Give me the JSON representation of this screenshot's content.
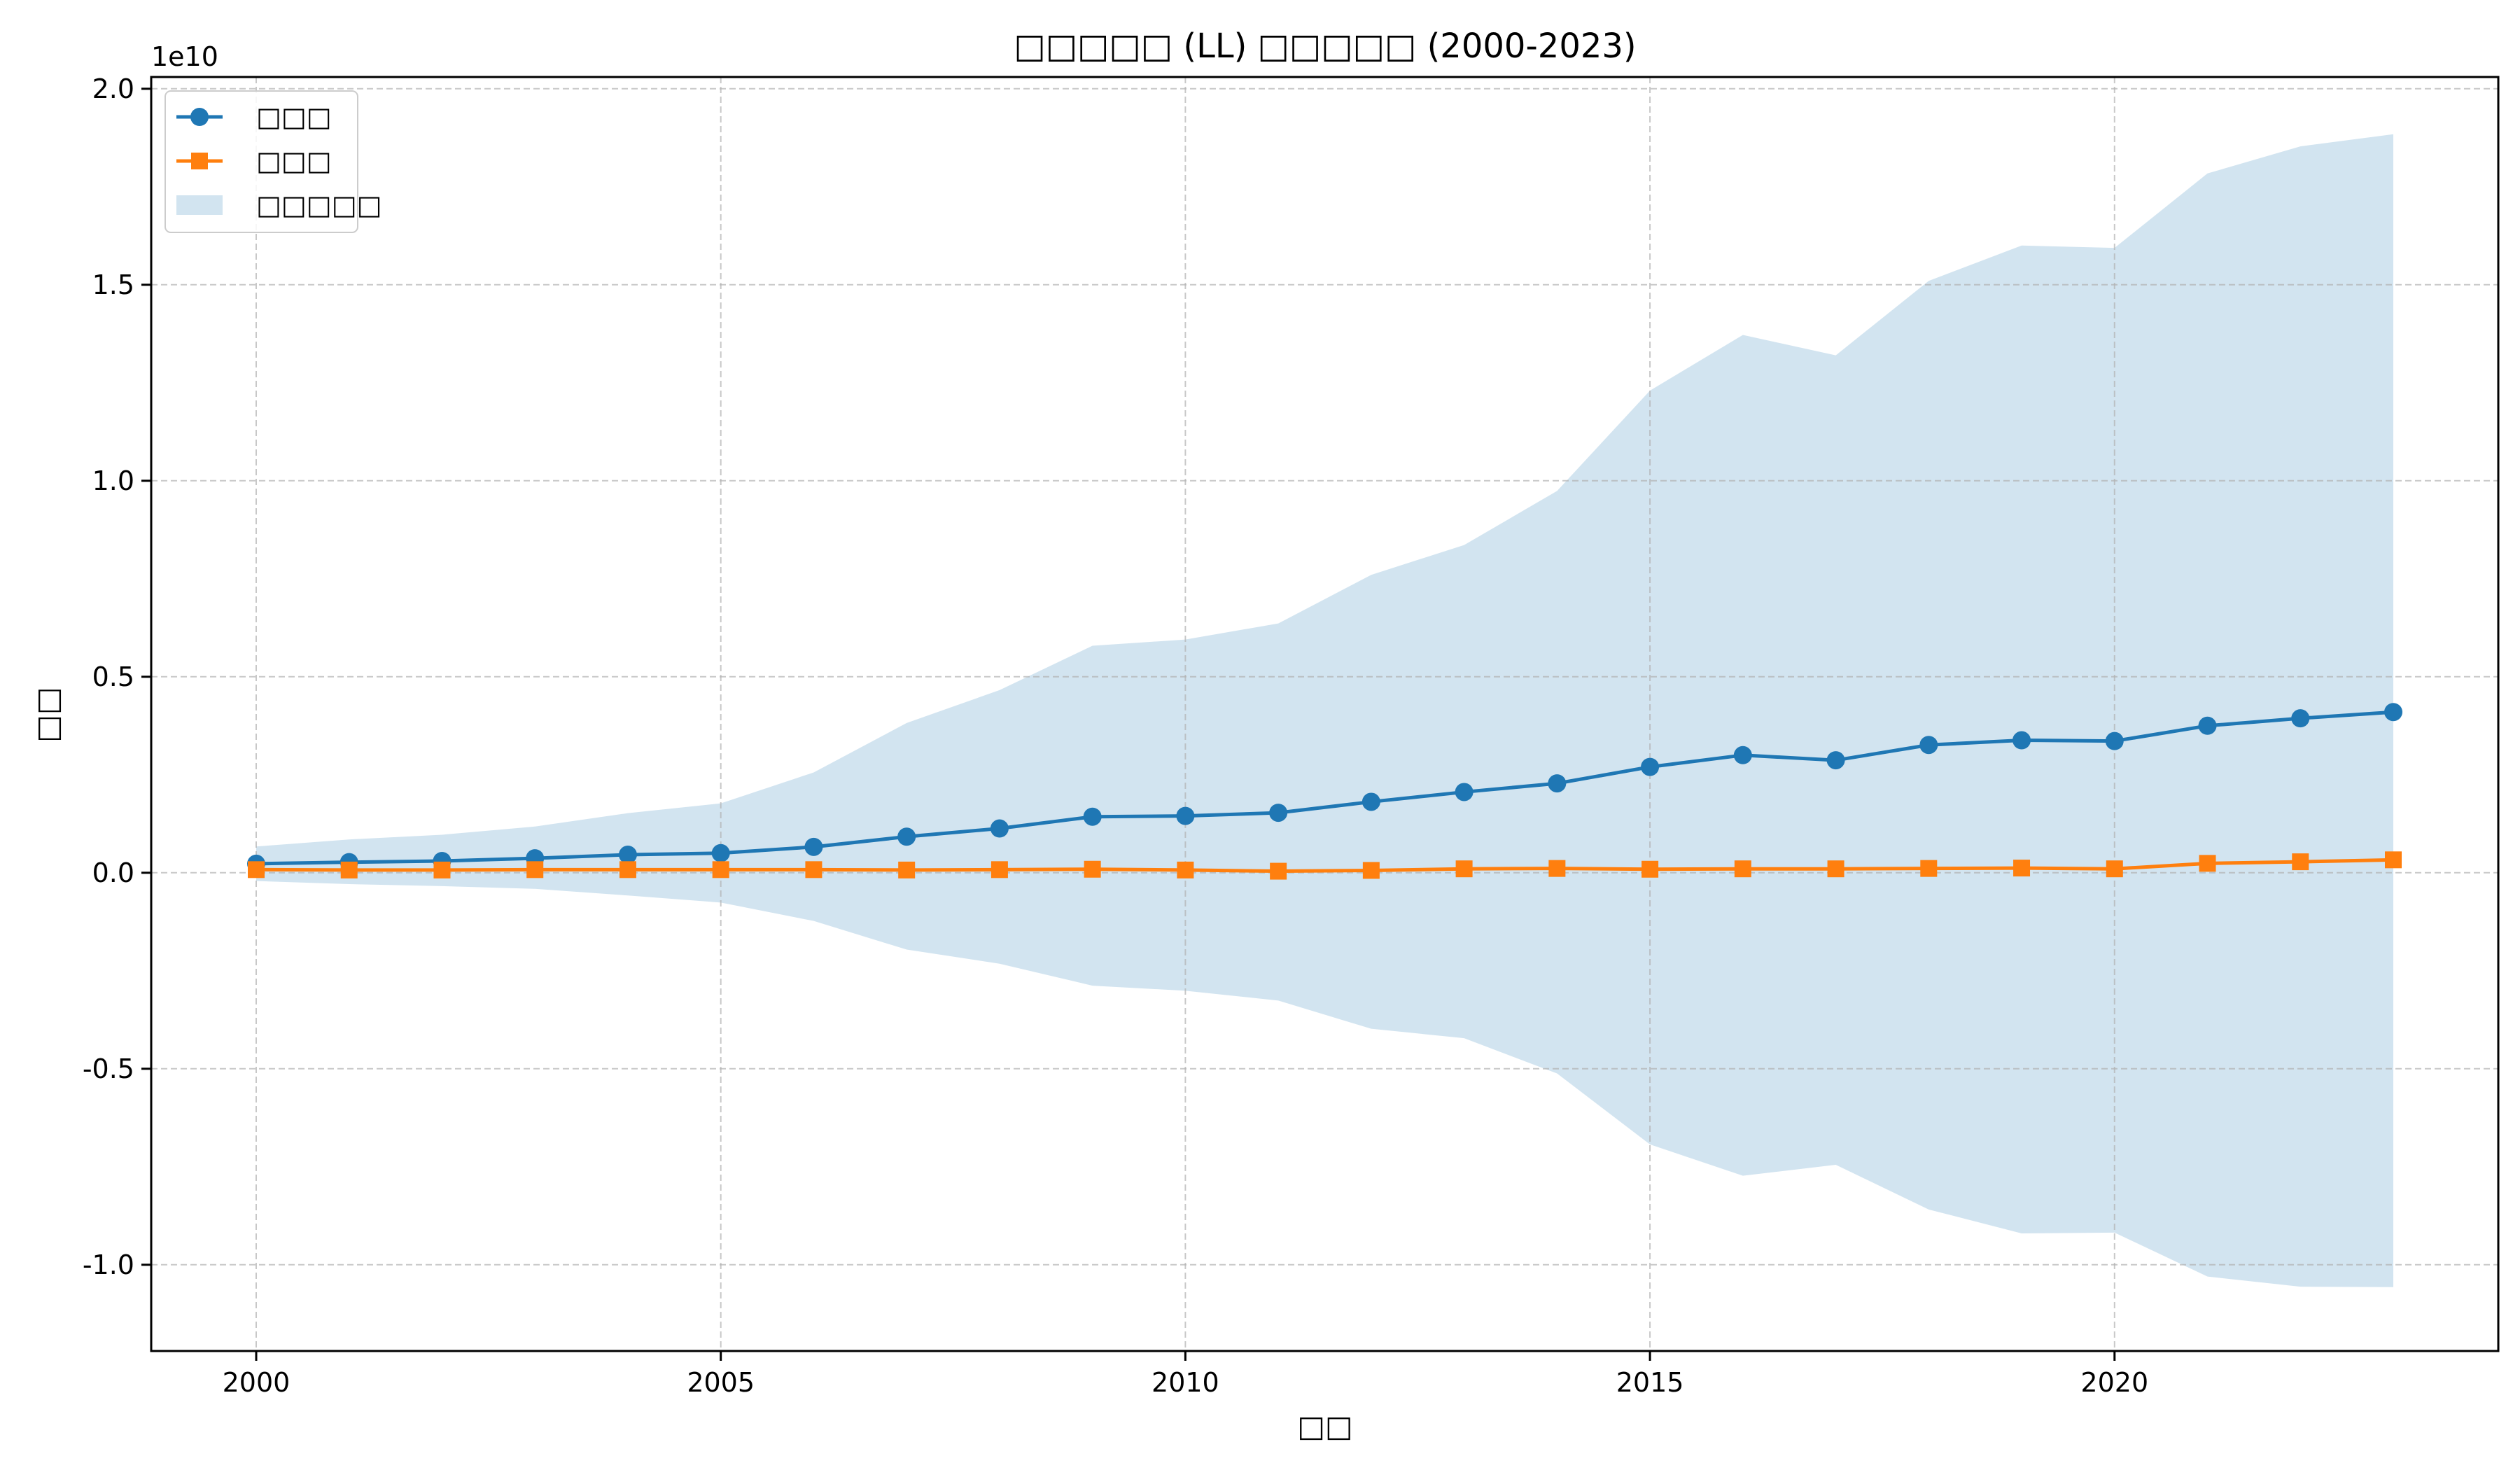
{
  "chart_data": {
    "type": "line",
    "title": "□□□□□ (LL) □□□□□ (2000-2023)",
    "xlabel": "□□",
    "ylabel": "□□",
    "y_offset_label": "1e10",
    "x": [
      2000,
      2001,
      2002,
      2003,
      2004,
      2005,
      2006,
      2007,
      2008,
      2009,
      2010,
      2011,
      2012,
      2013,
      2014,
      2015,
      2016,
      2017,
      2018,
      2019,
      2020,
      2021,
      2022,
      2023
    ],
    "x_ticks": [
      2000,
      2005,
      2010,
      2015,
      2020
    ],
    "x_tick_labels": [
      "2000",
      "2005",
      "2010",
      "2015",
      "2020"
    ],
    "xlim": [
      1998.87,
      2024.13
    ],
    "ylim": [
      -12200000000,
      20300000000
    ],
    "y_ticks": [
      -10000000000,
      -5000000000,
      0,
      5000000000,
      10000000000,
      15000000000,
      20000000000
    ],
    "y_tick_labels": [
      "-1.0",
      "-0.5",
      "0.0",
      "0.5",
      "1.0",
      "1.5",
      "2.0"
    ],
    "series": [
      {
        "name": "□□□",
        "kind": "line",
        "marker": "circle",
        "color": "#1f77b4",
        "values": [
          230000000,
          270000000,
          300000000,
          370000000,
          460000000,
          500000000,
          660000000,
          920000000,
          1130000000,
          1430000000,
          1450000000,
          1530000000,
          1810000000,
          2060000000,
          2280000000,
          2700000000,
          3000000000,
          2870000000,
          3260000000,
          3380000000,
          3360000000,
          3750000000,
          3940000000,
          4100000000
        ]
      },
      {
        "name": "□□□",
        "kind": "line",
        "marker": "square",
        "color": "#ff7f0e",
        "values": [
          80000000,
          70000000,
          70000000,
          80000000,
          80000000,
          80000000,
          80000000,
          70000000,
          80000000,
          90000000,
          70000000,
          40000000,
          60000000,
          100000000,
          110000000,
          90000000,
          100000000,
          100000000,
          110000000,
          120000000,
          100000000,
          240000000,
          280000000,
          330000000
        ]
      },
      {
        "name": "□□□□□",
        "kind": "band",
        "color": "#1f77b4",
        "opacity": 0.2,
        "upper": [
          670000000,
          850000000,
          970000000,
          1180000000,
          1520000000,
          1770000000,
          2560000000,
          3820000000,
          4660000000,
          5790000000,
          5950000000,
          6360000000,
          7600000000,
          8360000000,
          9740000000,
          12300000000,
          13720000000,
          13200000000,
          15100000000,
          16000000000,
          15940000000,
          17840000000,
          18530000000,
          18840000000
        ],
        "lower": [
          -210000000,
          -290000000,
          -340000000,
          -410000000,
          -580000000,
          -760000000,
          -1230000000,
          -1960000000,
          -2320000000,
          -2880000000,
          -3010000000,
          -3260000000,
          -3980000000,
          -4220000000,
          -5120000000,
          -6930000000,
          -7730000000,
          -7450000000,
          -8590000000,
          -9200000000,
          -9180000000,
          -10300000000,
          -10560000000,
          -10570000000
        ]
      }
    ],
    "grid": true,
    "legend_position": "top-left",
    "colors": {
      "line1": "#1f77b4",
      "line2": "#ff7f0e",
      "band": "#1f77b4",
      "grid": "#b0b0b0"
    }
  }
}
